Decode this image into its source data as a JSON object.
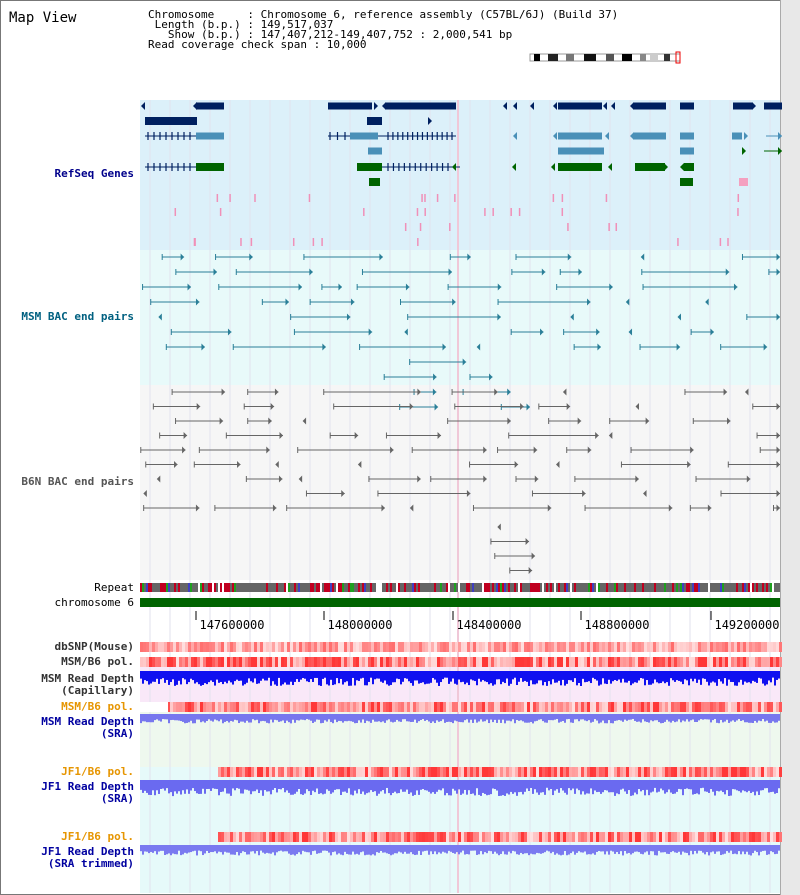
{
  "title": "Map View",
  "info": {
    "chromosome": "Chromosome     : Chromosome 6, reference assembly (C57BL/6J) (Build 37)",
    "length": " Length (b.p.) : 149,517,037",
    "show": "   Show (b.p.) : 147,407,212-149,407,752 : 2,000,541 bp",
    "coverage": "Read coverage check span : 10,000"
  },
  "tracks": {
    "refseq": "RefSeq Genes",
    "msm_bac": "MSM BAC end pairs",
    "b6n_bac": "B6N BAC end pairs",
    "repeat": "Repeat",
    "chromosome": "chromosome 6",
    "dbsnp": "dbSNP(Mouse)",
    "msm_pol": "MSM/B6 pol.",
    "msm_depth_cap_1": "MSM Read Depth",
    "msm_depth_cap_2": "(Capillary)",
    "msm_pol2": "MSM/B6 pol.",
    "msm_depth_sra_1": "MSM Read Depth",
    "msm_depth_sra_2": "(SRA)",
    "jf1_pol": "JF1/B6 pol.",
    "jf1_depth_1": "JF1 Read Depth",
    "jf1_depth_2": "(SRA)",
    "jf1_pol2": "JF1/B6 pol.",
    "jf1_trim_1": "JF1 Read Depth",
    "jf1_trim_2": "(SRA trimmed)"
  },
  "ticks": [
    "147600000",
    "148000000",
    "148400000",
    "148800000",
    "149200000"
  ],
  "colors": {
    "refseq_label": "#00008b",
    "msm_bac_label": "#006080",
    "b6n_bac_label": "#555555",
    "pol_label": "#e69500",
    "depth_label": "#0000a0",
    "gene_dark": "#002060",
    "gene_mid": "#4a90b8",
    "gene_green": "#006400",
    "refseq_bg": "#dcf0fa",
    "msm_bg": "#e8fafa",
    "b6n_bg": "#f6f6f6"
  }
}
